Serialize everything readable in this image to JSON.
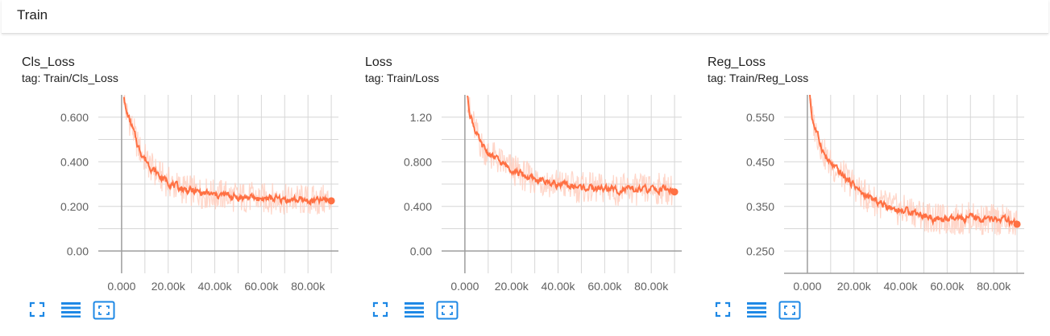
{
  "section": {
    "title": "Train"
  },
  "colors": {
    "line": "#ff7043",
    "raw": "#ffccbc",
    "grid": "#d6d6d6",
    "axis": "#9e9e9e",
    "icon": "#1e88e5"
  },
  "icons": [
    "fit-domain-icon",
    "log-scale-icon",
    "fullscreen-icon"
  ],
  "charts": [
    {
      "title": "Cls_Loss",
      "tag": "tag: Train/Cls_Loss"
    },
    {
      "title": "Loss",
      "tag": "tag: Train/Loss"
    },
    {
      "title": "Reg_Loss",
      "tag": "tag: Train/Reg_Loss"
    }
  ],
  "chart_data": [
    {
      "type": "line",
      "title": "Cls_Loss",
      "xlim": [
        -10000,
        100000
      ],
      "ylim": [
        -0.1,
        0.7
      ],
      "xticks": [
        0,
        10000,
        20000,
        30000,
        40000,
        50000,
        60000,
        70000,
        80000,
        90000
      ],
      "xtick_labels": [
        "0.000",
        "",
        "20.00k",
        "",
        "40.00k",
        "",
        "60.00k",
        "",
        "80.00k",
        ""
      ],
      "yticks": [
        0,
        0.1,
        0.2,
        0.3,
        0.4,
        0.5,
        0.6
      ],
      "ytick_labels": [
        "0.00",
        "",
        "0.200",
        "",
        "0.400",
        "",
        "0.600"
      ],
      "series": [
        {
          "x": [
            1000,
            2000,
            3000,
            5000,
            7000,
            9000,
            11000,
            13000,
            15000,
            17000,
            20000,
            23000,
            26000,
            30000,
            35000,
            40000,
            45000,
            50000,
            55000,
            60000,
            65000,
            70000,
            75000,
            80000,
            85000,
            88000,
            90000
          ],
          "y": [
            0.7,
            0.62,
            0.6,
            0.54,
            0.47,
            0.43,
            0.4,
            0.37,
            0.35,
            0.33,
            0.31,
            0.29,
            0.28,
            0.27,
            0.26,
            0.25,
            0.25,
            0.24,
            0.24,
            0.235,
            0.235,
            0.23,
            0.23,
            0.225,
            0.225,
            0.23,
            0.225
          ]
        }
      ]
    },
    {
      "type": "line",
      "title": "Loss",
      "xlim": [
        -10000,
        100000
      ],
      "ylim": [
        -0.2,
        1.4
      ],
      "xticks": [
        0,
        10000,
        20000,
        30000,
        40000,
        50000,
        60000,
        70000,
        80000,
        90000
      ],
      "xtick_labels": [
        "0.000",
        "",
        "20.00k",
        "",
        "40.00k",
        "",
        "60.00k",
        "",
        "80.00k",
        ""
      ],
      "yticks": [
        0,
        0.2,
        0.4,
        0.6,
        0.8,
        1.0,
        1.2
      ],
      "ytick_labels": [
        "0.00",
        "",
        "0.400",
        "",
        "0.800",
        "",
        "1.20"
      ],
      "series": [
        {
          "x": [
            1000,
            2000,
            3000,
            5000,
            7000,
            9000,
            11000,
            13000,
            15000,
            17000,
            20000,
            23000,
            26000,
            30000,
            35000,
            40000,
            45000,
            50000,
            55000,
            60000,
            65000,
            70000,
            75000,
            80000,
            85000,
            88000,
            90000
          ],
          "y": [
            1.4,
            1.25,
            1.18,
            1.05,
            0.95,
            0.9,
            0.86,
            0.83,
            0.8,
            0.77,
            0.74,
            0.7,
            0.67,
            0.64,
            0.62,
            0.6,
            0.58,
            0.57,
            0.56,
            0.56,
            0.55,
            0.55,
            0.55,
            0.55,
            0.56,
            0.55,
            0.53
          ]
        }
      ]
    },
    {
      "type": "line",
      "title": "Reg_Loss",
      "xlim": [
        -10000,
        100000
      ],
      "ylim": [
        0.2,
        0.6
      ],
      "xticks": [
        0,
        10000,
        20000,
        30000,
        40000,
        50000,
        60000,
        70000,
        80000,
        90000
      ],
      "xtick_labels": [
        "0.000",
        "",
        "20.00k",
        "",
        "40.00k",
        "",
        "60.00k",
        "",
        "80.00k",
        ""
      ],
      "yticks": [
        0.25,
        0.3,
        0.35,
        0.4,
        0.45,
        0.5,
        0.55
      ],
      "ytick_labels": [
        "0.250",
        "",
        "0.350",
        "",
        "0.450",
        "",
        "0.550"
      ],
      "series": [
        {
          "x": [
            1000,
            2000,
            3000,
            5000,
            7000,
            9000,
            11000,
            13000,
            15000,
            17000,
            20000,
            23000,
            26000,
            30000,
            35000,
            40000,
            45000,
            50000,
            55000,
            60000,
            65000,
            70000,
            75000,
            80000,
            85000,
            88000,
            90000
          ],
          "y": [
            0.6,
            0.55,
            0.53,
            0.5,
            0.47,
            0.45,
            0.44,
            0.43,
            0.42,
            0.41,
            0.4,
            0.38,
            0.37,
            0.36,
            0.35,
            0.34,
            0.34,
            0.33,
            0.32,
            0.32,
            0.32,
            0.325,
            0.32,
            0.32,
            0.32,
            0.31,
            0.31
          ]
        }
      ]
    }
  ]
}
